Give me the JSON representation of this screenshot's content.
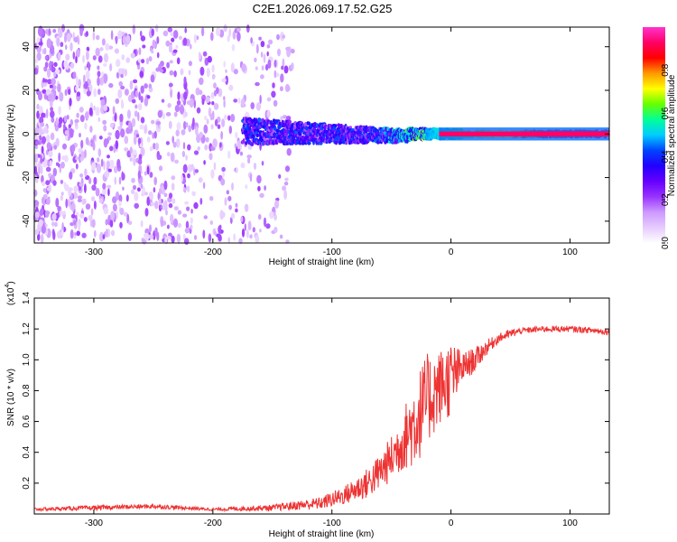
{
  "title": "C2E1.2026.069.17.52.G25",
  "chart_data": [
    {
      "type": "heatmap",
      "title": "C2E1.2026.069.17.52.G25",
      "xlabel": "Height of straight line (km)",
      "ylabel": "Frequency (Hz)",
      "xlim": [
        -350,
        133
      ],
      "ylim": [
        -50,
        49
      ],
      "xticks": [
        -300,
        -200,
        -100,
        0,
        100
      ],
      "yticks": [
        -40,
        -20,
        0,
        20,
        40
      ],
      "colorbar": {
        "label": "Normalized spectral amplitude",
        "range": [
          0,
          1
        ],
        "ticks": [
          0.0,
          0.2,
          0.4,
          0.6,
          0.8
        ],
        "tick_labels": [
          "0.0",
          "0.2",
          "0.4",
          "0.6",
          "0.8"
        ],
        "colormap": [
          "#ffffff",
          "#e6ccff",
          "#cc99ff",
          "#9933ff",
          "#6600ff",
          "#2200ff",
          "#0044ff",
          "#00ccff",
          "#00ff99",
          "#66ff00",
          "#ffff00",
          "#ff9900",
          "#ff0000",
          "#ff0066",
          "#ff33cc"
        ]
      },
      "features": [
        {
          "name": "noise",
          "x_range": [
            -350,
            -133
          ],
          "freq_range": [
            -50,
            49
          ],
          "amplitude": 0.15
        },
        {
          "name": "signal-band",
          "x_range": [
            -175,
            133
          ],
          "freq_center": 0,
          "freq_start_halfwidth": 6,
          "freq_end_halfwidth": 1.5,
          "amplitude_start": 0.3,
          "amplitude_end": 0.95
        }
      ]
    },
    {
      "type": "line",
      "ylabel": "SNR (10 * v/v)",
      "yscale_label": "(x10",
      "yscale_exponent": "4",
      "xlabel": "Height of straight line (km)",
      "xlim": [
        -350,
        133
      ],
      "ylim": [
        0,
        1.4
      ],
      "xticks": [
        -300,
        -200,
        -100,
        0,
        100
      ],
      "yticks": [
        0.2,
        0.4,
        0.6,
        0.8,
        1.0,
        1.2,
        1.4
      ],
      "series": [
        {
          "name": "SNR",
          "color": "#ee3333",
          "x": [
            -350,
            -300,
            -250,
            -200,
            -150,
            -110,
            -90,
            -70,
            -60,
            -50,
            -40,
            -30,
            -20,
            -10,
            0,
            10,
            20,
            30,
            40,
            50,
            60,
            80,
            100,
            120,
            133
          ],
          "y": [
            0.03,
            0.04,
            0.05,
            0.03,
            0.04,
            0.07,
            0.12,
            0.2,
            0.27,
            0.36,
            0.48,
            0.6,
            0.74,
            0.82,
            0.88,
            0.95,
            1.0,
            1.08,
            1.14,
            1.17,
            1.19,
            1.2,
            1.2,
            1.19,
            1.18
          ],
          "noise": [
            0.01,
            0.015,
            0.015,
            0.01,
            0.02,
            0.04,
            0.06,
            0.1,
            0.12,
            0.15,
            0.2,
            0.3,
            0.3,
            0.25,
            0.25,
            0.1,
            0.08,
            0.05,
            0.03,
            0.03,
            0.02,
            0.02,
            0.02,
            0.02,
            0.02
          ]
        }
      ]
    }
  ]
}
